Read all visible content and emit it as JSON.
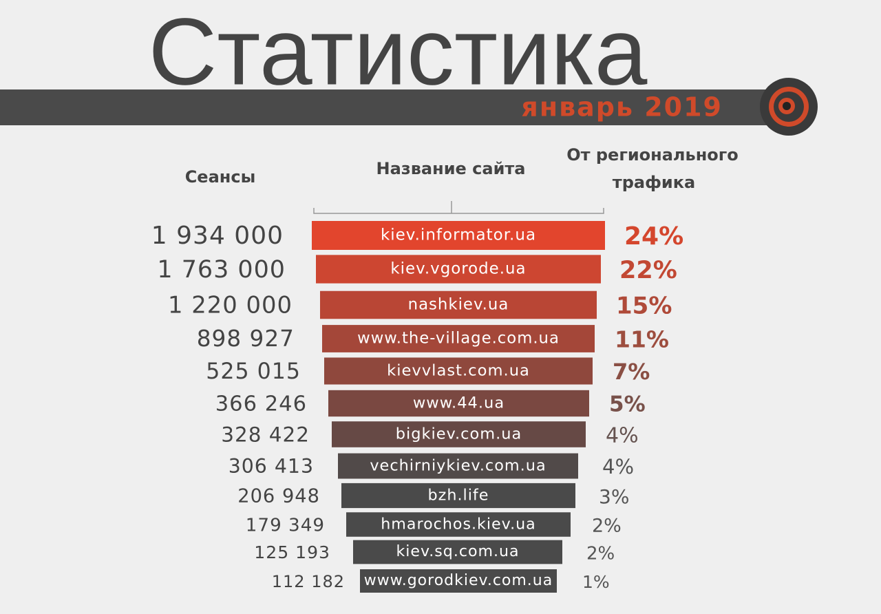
{
  "header": {
    "title": "Статистика",
    "subtitle": "январь 2019"
  },
  "columns": {
    "sessions": "Сеансы",
    "site": "Название сайта",
    "share": [
      "От регионального",
      "трафика"
    ]
  },
  "rows": [
    {
      "sessions": "1 934 000",
      "site": "kiev.informator.ua",
      "share": "24%"
    },
    {
      "sessions": "1 763 000",
      "site": "kiev.vgorode.ua",
      "share": "22%"
    },
    {
      "sessions": "1 220 000",
      "site": "nashkiev.ua",
      "share": "15%"
    },
    {
      "sessions": "898 927",
      "site": "www.the-village.com.ua",
      "share": "11%"
    },
    {
      "sessions": "525 015",
      "site": "kievvlast.com.ua",
      "share": "7%"
    },
    {
      "sessions": "366 246",
      "site": "www.44.ua",
      "share": "5%"
    },
    {
      "sessions": "328 422",
      "site": "bigkiev.com.ua",
      "share": "4%"
    },
    {
      "sessions": "306 413",
      "site": "vechirniykiev.com.ua",
      "share": "4%"
    },
    {
      "sessions": "206 948",
      "site": "bzh.life",
      "share": "3%"
    },
    {
      "sessions": "179 349",
      "site": "hmarochos.kiev.ua",
      "share": "2%"
    },
    {
      "sessions": "125 193",
      "site": "kiev.sq.com.ua",
      "share": "2%"
    },
    {
      "sessions": "112 182",
      "site": "www.gorodkiev.com.ua",
      "share": "1%"
    }
  ]
}
